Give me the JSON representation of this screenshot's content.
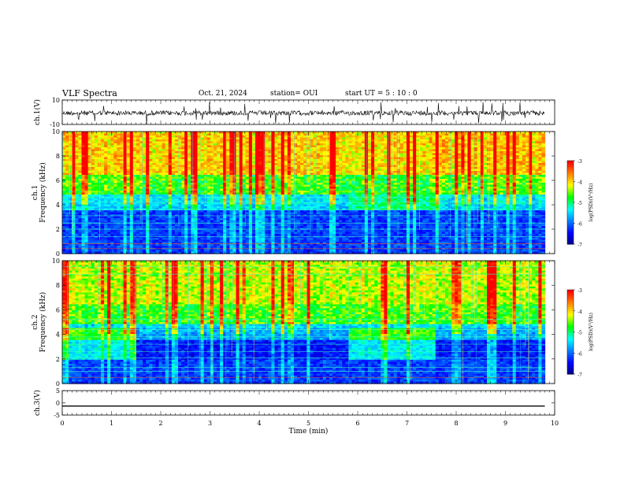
{
  "header": {
    "title": "VLF Spectra",
    "date": "Oct. 21, 2024",
    "station": "station= OUI",
    "start": "start  UT =   5  : 10 : 0"
  },
  "chart_data": [
    {
      "type": "line",
      "panel": "ch1-waveform",
      "ylabel": "ch.1(V)",
      "ylim": [
        -10,
        10
      ],
      "yticks": [
        "10",
        "-10"
      ],
      "xlim": [
        0,
        10
      ],
      "description": "dense noisy waveform centered near 0 V"
    },
    {
      "type": "heatmap",
      "panel": "ch1-spectrogram",
      "ylabel": "ch.1\nFrequency (kHz)",
      "ylabel_line1": "ch.1",
      "ylabel_line2": "Frequency (kHz)",
      "ylim": [
        0,
        10
      ],
      "yticks": [
        "0",
        "2",
        "4",
        "6",
        "8",
        "10"
      ],
      "xlim": [
        0,
        9.8
      ],
      "colorbar": {
        "label": "log(PSD)(V²/Hz)",
        "range": [
          -7,
          -3
        ],
        "ticks": [
          "-3",
          "-4",
          "-5",
          "-6",
          "-7"
        ]
      }
    },
    {
      "type": "heatmap",
      "panel": "ch2-spectrogram",
      "ylabel_line1": "ch.2",
      "ylabel_line2": "Frequency (kHz)",
      "ylim": [
        0,
        10
      ],
      "yticks": [
        "0",
        "2",
        "4",
        "6",
        "8",
        "10"
      ],
      "xlim": [
        0,
        9.8
      ],
      "colorbar": {
        "label": "log(PSD)(V²/Hz)",
        "range": [
          -7,
          -3
        ],
        "ticks": [
          "-3",
          "-4",
          "-5",
          "-6",
          "-7"
        ]
      }
    },
    {
      "type": "line",
      "panel": "ch3-waveform",
      "ylabel": "ch.3(V)",
      "ylim": [
        -5,
        5
      ],
      "yticks": [
        "5",
        "0",
        "-5"
      ],
      "x": [
        0,
        9.8
      ],
      "y": [
        -1.3,
        -1.3
      ]
    }
  ],
  "xaxis": {
    "label": "Time (min)",
    "ticks": [
      "0",
      "1",
      "2",
      "3",
      "4",
      "5",
      "6",
      "7",
      "8",
      "9",
      "10"
    ],
    "range": [
      0,
      10
    ]
  },
  "colors": {
    "scale": [
      "#000080",
      "#0000ff",
      "#0080ff",
      "#00ffff",
      "#00ff00",
      "#ffff00",
      "#ff8000",
      "#ff0000",
      "#ffffff"
    ]
  }
}
